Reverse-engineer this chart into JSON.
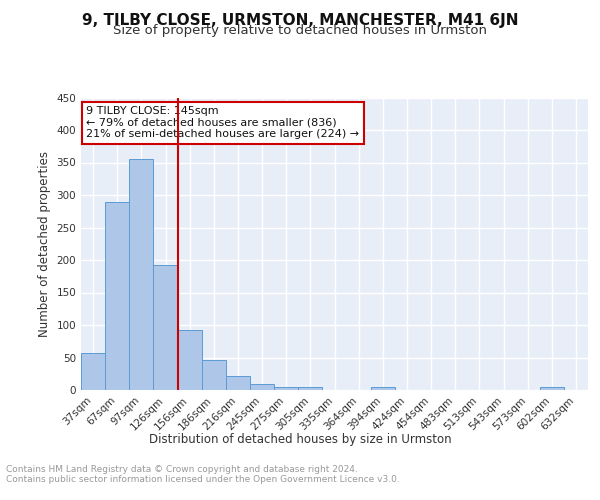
{
  "title": "9, TILBY CLOSE, URMSTON, MANCHESTER, M41 6JN",
  "subtitle": "Size of property relative to detached houses in Urmston",
  "xlabel": "Distribution of detached houses by size in Urmston",
  "ylabel": "Number of detached properties",
  "categories": [
    "37sqm",
    "67sqm",
    "97sqm",
    "126sqm",
    "156sqm",
    "186sqm",
    "216sqm",
    "245sqm",
    "275sqm",
    "305sqm",
    "335sqm",
    "364sqm",
    "394sqm",
    "424sqm",
    "454sqm",
    "483sqm",
    "513sqm",
    "543sqm",
    "573sqm",
    "602sqm",
    "632sqm"
  ],
  "values": [
    57,
    290,
    355,
    192,
    93,
    46,
    21,
    9,
    4,
    4,
    0,
    0,
    5,
    0,
    0,
    0,
    0,
    0,
    0,
    4,
    0
  ],
  "bar_color": "#aec6e8",
  "bar_edgecolor": "#5b9bd5",
  "vline_x": 3.5,
  "vline_color": "#cc0000",
  "annotation_text": "9 TILBY CLOSE: 145sqm\n← 79% of detached houses are smaller (836)\n21% of semi-detached houses are larger (224) →",
  "annotation_box_edgecolor": "#cc0000",
  "annotation_box_facecolor": "#ffffff",
  "ylim": [
    0,
    450
  ],
  "yticks": [
    0,
    50,
    100,
    150,
    200,
    250,
    300,
    350,
    400,
    450
  ],
  "footer_text": "Contains HM Land Registry data © Crown copyright and database right 2024.\nContains public sector information licensed under the Open Government Licence v3.0.",
  "bg_color": "#e8eef8",
  "title_fontsize": 11,
  "subtitle_fontsize": 9.5,
  "axis_label_fontsize": 8.5,
  "tick_fontsize": 7.5,
  "footer_fontsize": 6.5,
  "annotation_fontsize": 8
}
